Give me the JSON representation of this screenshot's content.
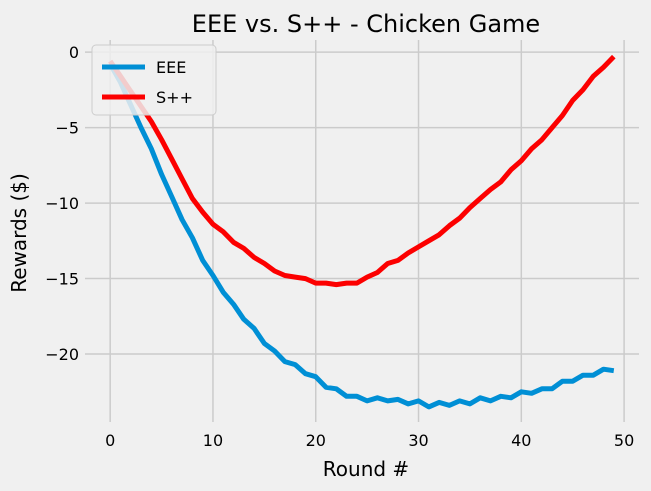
{
  "chart_data": {
    "type": "line",
    "title": "EEE vs. S++ - Chicken Game",
    "xlabel": "Round #",
    "ylabel": "Rewards ($)",
    "xlim": [
      -2.45,
      51.45
    ],
    "ylim": [
      -24.5,
      0.8
    ],
    "xticks": [
      0,
      10,
      20,
      30,
      40,
      50
    ],
    "yticks": [
      0,
      -5,
      -10,
      -15,
      -20
    ],
    "xtick_labels": [
      "0",
      "10",
      "20",
      "30",
      "40",
      "50"
    ],
    "ytick_labels": [
      "0",
      "−5",
      "−10",
      "−15",
      "−20"
    ],
    "grid": true,
    "legend_position": "top-left",
    "x": [
      0,
      1,
      2,
      3,
      4,
      5,
      6,
      7,
      8,
      9,
      10,
      11,
      12,
      13,
      14,
      15,
      16,
      17,
      18,
      19,
      20,
      21,
      22,
      23,
      24,
      25,
      26,
      27,
      28,
      29,
      30,
      31,
      32,
      33,
      34,
      35,
      36,
      37,
      38,
      39,
      40,
      41,
      42,
      43,
      44,
      45,
      46,
      47,
      48,
      49
    ],
    "series": [
      {
        "name": "EEE",
        "color": "#008fd5",
        "values": [
          -0.8,
          -2.0,
          -3.5,
          -5.0,
          -6.4,
          -8.1,
          -9.6,
          -11.1,
          -12.3,
          -13.8,
          -14.8,
          -15.9,
          -16.7,
          -17.7,
          -18.3,
          -19.3,
          -19.8,
          -20.5,
          -20.7,
          -21.3,
          -21.5,
          -22.2,
          -22.3,
          -22.8,
          -22.8,
          -23.1,
          -22.9,
          -23.1,
          -23.0,
          -23.3,
          -23.1,
          -23.5,
          -23.2,
          -23.4,
          -23.1,
          -23.3,
          -22.9,
          -23.1,
          -22.8,
          -22.9,
          -22.5,
          -22.6,
          -22.3,
          -22.3,
          -21.8,
          -21.8,
          -21.4,
          -21.4,
          -21.0,
          -21.1
        ]
      },
      {
        "name": "S++",
        "color": "#fc0000",
        "values": [
          -0.6,
          -1.6,
          -2.6,
          -3.6,
          -4.6,
          -5.8,
          -7.1,
          -8.4,
          -9.7,
          -10.6,
          -11.4,
          -11.9,
          -12.6,
          -13.0,
          -13.6,
          -14.0,
          -14.5,
          -14.8,
          -14.9,
          -15.0,
          -15.3,
          -15.3,
          -15.4,
          -15.3,
          -15.3,
          -14.9,
          -14.6,
          -14.0,
          -13.8,
          -13.3,
          -12.9,
          -12.5,
          -12.1,
          -11.5,
          -11.0,
          -10.3,
          -9.7,
          -9.1,
          -8.6,
          -7.8,
          -7.2,
          -6.4,
          -5.8,
          -5.0,
          -4.2,
          -3.2,
          -2.5,
          -1.6,
          -1.0,
          -0.3
        ]
      }
    ]
  }
}
